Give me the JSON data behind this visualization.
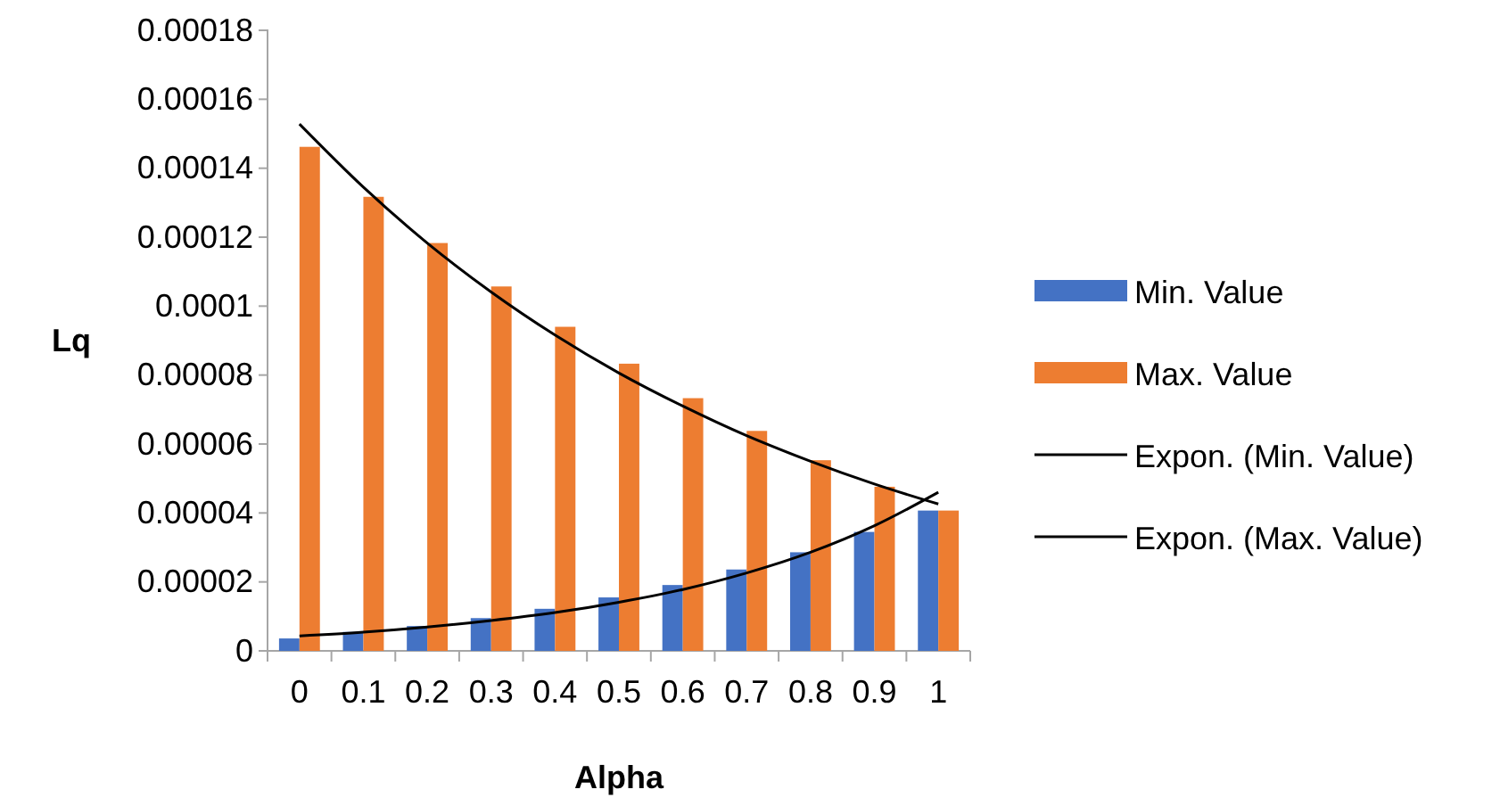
{
  "chart_data": {
    "type": "bar",
    "xlabel": "Alpha",
    "ylabel": "Lq",
    "categories": [
      "0",
      "0.1",
      "0.2",
      "0.3",
      "0.4",
      "0.5",
      "0.6",
      "0.7",
      "0.8",
      "0.9",
      "1"
    ],
    "series": [
      {
        "name": "Min. Value",
        "color": "#4472c4",
        "values": [
          3.6e-06,
          5.5e-06,
          7.2e-06,
          9.5e-06,
          1.22e-05,
          1.55e-05,
          1.91e-05,
          2.36e-05,
          2.86e-05,
          3.45e-05,
          4.07e-05
        ]
      },
      {
        "name": "Max. Value",
        "color": "#ed7d31",
        "values": [
          0.0001462,
          0.0001317,
          0.0001183,
          0.0001057,
          9.4e-05,
          8.33e-05,
          7.33e-05,
          6.38e-05,
          5.53e-05,
          4.76e-05,
          4.07e-05
        ]
      },
      {
        "name": "Expon. (Min. Value)",
        "type": "line",
        "color": "#000000",
        "x": [
          "0",
          "0.1",
          "0.2",
          "0.3",
          "0.4",
          "0.5",
          "0.6",
          "0.7",
          "0.8",
          "0.9",
          "1"
        ],
        "values": [
          4.3e-06,
          5.4e-06,
          6.9e-06,
          8.8e-06,
          1.11e-05,
          1.41e-05,
          1.78e-05,
          2.26e-05,
          2.86e-05,
          3.63e-05,
          4.6e-05
        ]
      },
      {
        "name": "Expon. (Max. Value)",
        "type": "line",
        "color": "#000000",
        "x": [
          "0",
          "0.1",
          "0.2",
          "0.3",
          "0.4",
          "0.5",
          "0.6",
          "0.7",
          "0.8",
          "0.9",
          "1"
        ],
        "values": [
          0.0001528,
          0.0001345,
          0.0001183,
          0.0001041,
          9.16e-05,
          8.06e-05,
          7.1e-05,
          6.24e-05,
          5.5e-05,
          4.84e-05,
          4.26e-05
        ]
      }
    ],
    "ylim": [
      0,
      0.00018
    ],
    "yticks": [
      {
        "value": 0,
        "label": "0"
      },
      {
        "value": 2e-05,
        "label": "0.00002"
      },
      {
        "value": 4e-05,
        "label": "0.00004"
      },
      {
        "value": 6e-05,
        "label": "0.00006"
      },
      {
        "value": 8e-05,
        "label": "0.00008"
      },
      {
        "value": 0.0001,
        "label": "0.0001"
      },
      {
        "value": 0.00012,
        "label": "0.00012"
      },
      {
        "value": 0.00014,
        "label": "0.00014"
      },
      {
        "value": 0.00016,
        "label": "0.00016"
      },
      {
        "value": 0.00018,
        "label": "0.00018"
      }
    ],
    "legend": "right",
    "grid": false
  }
}
